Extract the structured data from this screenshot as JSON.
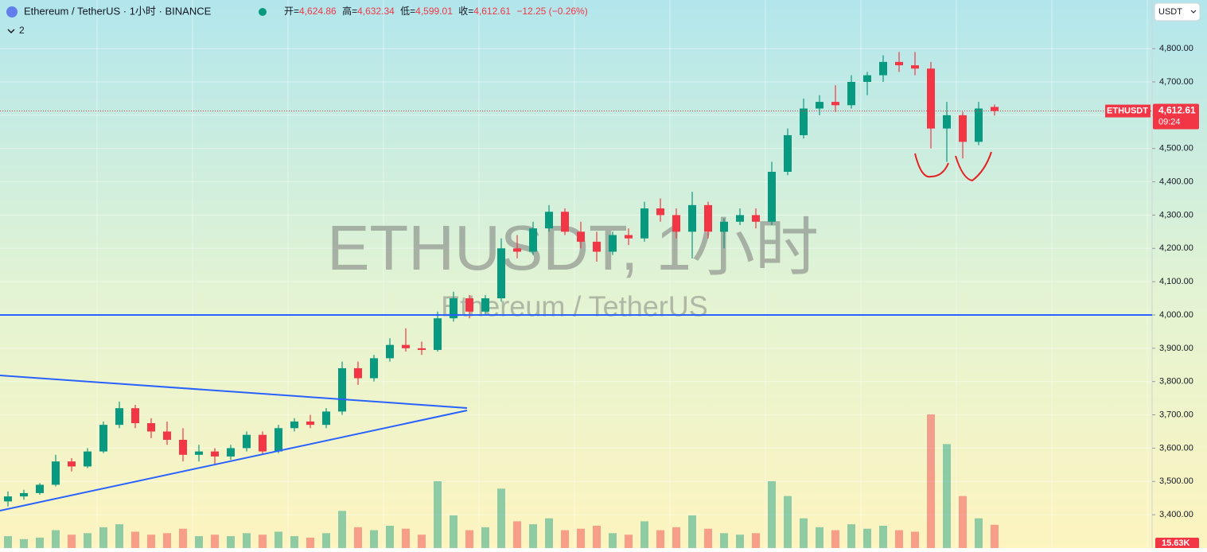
{
  "header": {
    "symbol": "Ethereum / TetherUS · 1小时 · BINANCE",
    "indicators": "2",
    "open_label": "开=",
    "open": "4,624.86",
    "high_label": "高=",
    "high": "4,632.34",
    "low_label": "低=",
    "low": "4,599.01",
    "close_label": "收=",
    "close": "4,612.61",
    "change": "−12.25 (−0.26%)",
    "currency": "USDT"
  },
  "chart_data": {
    "type": "candlestick",
    "watermark": "ETHUSDT, 1小时",
    "watermark_subtitle": "Ethereum / TetherUS",
    "up_color": "#089981",
    "down_color": "#f23645",
    "ylim": [
      3300,
      4946
    ],
    "yticks": [
      {
        "value": 3400,
        "label": "3,400.00"
      },
      {
        "value": 3500,
        "label": "3,500.00"
      },
      {
        "value": 3600,
        "label": "3,600.00"
      },
      {
        "value": 3700,
        "label": "3,700.00"
      },
      {
        "value": 3800,
        "label": "3,800.00"
      },
      {
        "value": 3900,
        "label": "3,900.00"
      },
      {
        "value": 4000,
        "label": "4,000.00"
      },
      {
        "value": 4100,
        "label": "4,100.00"
      },
      {
        "value": 4200,
        "label": "4,200.00"
      },
      {
        "value": 4300,
        "label": "4,300.00"
      },
      {
        "value": 4400,
        "label": "4,400.00"
      },
      {
        "value": 4500,
        "label": "4,500.00"
      },
      {
        "value": 4600,
        "label": "4,600.00"
      },
      {
        "value": 4700,
        "label": "4,700.00"
      },
      {
        "value": 4800,
        "label": "4,800.00"
      }
    ],
    "horizontal_line": 4000,
    "last_price": {
      "symbol": "ETHUSDT",
      "value": 4612.61,
      "label": "4,612.61",
      "countdown": "09:24"
    },
    "last_volume": {
      "value": 15.63,
      "label": "15.63K"
    },
    "candles": [
      [
        3440,
        3470,
        3425,
        3455
      ],
      [
        3455,
        3475,
        3445,
        3465
      ],
      [
        3465,
        3495,
        3460,
        3490
      ],
      [
        3490,
        3580,
        3485,
        3560
      ],
      [
        3560,
        3570,
        3530,
        3545
      ],
      [
        3545,
        3600,
        3540,
        3590
      ],
      [
        3590,
        3680,
        3585,
        3670
      ],
      [
        3670,
        3740,
        3660,
        3720
      ],
      [
        3720,
        3730,
        3660,
        3675
      ],
      [
        3675,
        3690,
        3630,
        3650
      ],
      [
        3650,
        3680,
        3610,
        3625
      ],
      [
        3625,
        3660,
        3560,
        3580
      ],
      [
        3580,
        3610,
        3560,
        3590
      ],
      [
        3590,
        3600,
        3550,
        3575
      ],
      [
        3575,
        3610,
        3565,
        3600
      ],
      [
        3600,
        3650,
        3590,
        3640
      ],
      [
        3640,
        3650,
        3580,
        3590
      ],
      [
        3590,
        3670,
        3585,
        3660
      ],
      [
        3660,
        3690,
        3650,
        3680
      ],
      [
        3680,
        3700,
        3660,
        3670
      ],
      [
        3670,
        3720,
        3660,
        3710
      ],
      [
        3710,
        3860,
        3700,
        3840
      ],
      [
        3840,
        3860,
        3790,
        3810
      ],
      [
        3810,
        3880,
        3800,
        3870
      ],
      [
        3870,
        3930,
        3860,
        3910
      ],
      [
        3910,
        3960,
        3890,
        3900
      ],
      [
        3900,
        3920,
        3880,
        3895
      ],
      [
        3895,
        4010,
        3890,
        3990
      ],
      [
        3990,
        4070,
        3980,
        4050
      ],
      [
        4050,
        4060,
        3990,
        4010
      ],
      [
        4010,
        4060,
        4000,
        4050
      ],
      [
        4050,
        4230,
        4040,
        4200
      ],
      [
        4200,
        4240,
        4170,
        4190
      ],
      [
        4190,
        4280,
        4180,
        4260
      ],
      [
        4260,
        4330,
        4250,
        4310
      ],
      [
        4310,
        4320,
        4240,
        4250
      ],
      [
        4250,
        4280,
        4200,
        4220
      ],
      [
        4220,
        4250,
        4160,
        4190
      ],
      [
        4190,
        4250,
        4180,
        4240
      ],
      [
        4240,
        4260,
        4210,
        4230
      ],
      [
        4230,
        4340,
        4220,
        4320
      ],
      [
        4320,
        4350,
        4280,
        4300
      ],
      [
        4300,
        4320,
        4230,
        4250
      ],
      [
        4250,
        4370,
        4170,
        4330
      ],
      [
        4330,
        4340,
        4230,
        4250
      ],
      [
        4250,
        4290,
        4200,
        4280
      ],
      [
        4280,
        4320,
        4270,
        4300
      ],
      [
        4300,
        4320,
        4260,
        4280
      ],
      [
        4280,
        4460,
        4270,
        4430
      ],
      [
        4430,
        4560,
        4420,
        4540
      ],
      [
        4540,
        4650,
        4530,
        4620
      ],
      [
        4620,
        4660,
        4600,
        4640
      ],
      [
        4640,
        4690,
        4610,
        4630
      ],
      [
        4630,
        4720,
        4620,
        4700
      ],
      [
        4700,
        4730,
        4660,
        4720
      ],
      [
        4720,
        4780,
        4700,
        4760
      ],
      [
        4760,
        4790,
        4730,
        4750
      ],
      [
        4750,
        4790,
        4720,
        4740
      ],
      [
        4740,
        4760,
        4500,
        4560
      ],
      [
        4560,
        4640,
        4460,
        4600
      ],
      [
        4600,
        4610,
        4470,
        4520
      ],
      [
        4520,
        4640,
        4510,
        4620
      ],
      [
        4624.86,
        4632.34,
        4599.01,
        4612.61
      ]
    ],
    "volumes": [
      8,
      6,
      7,
      12,
      9,
      10,
      14,
      16,
      11,
      9,
      10,
      13,
      8,
      9,
      8,
      10,
      9,
      11,
      8,
      7,
      10,
      25,
      14,
      12,
      15,
      13,
      9,
      45,
      22,
      12,
      14,
      40,
      18,
      16,
      20,
      12,
      13,
      15,
      10,
      9,
      18,
      12,
      14,
      22,
      13,
      10,
      9,
      10,
      45,
      35,
      20,
      14,
      12,
      16,
      13,
      15,
      12,
      11,
      90,
      70,
      35,
      20,
      15.63
    ]
  }
}
